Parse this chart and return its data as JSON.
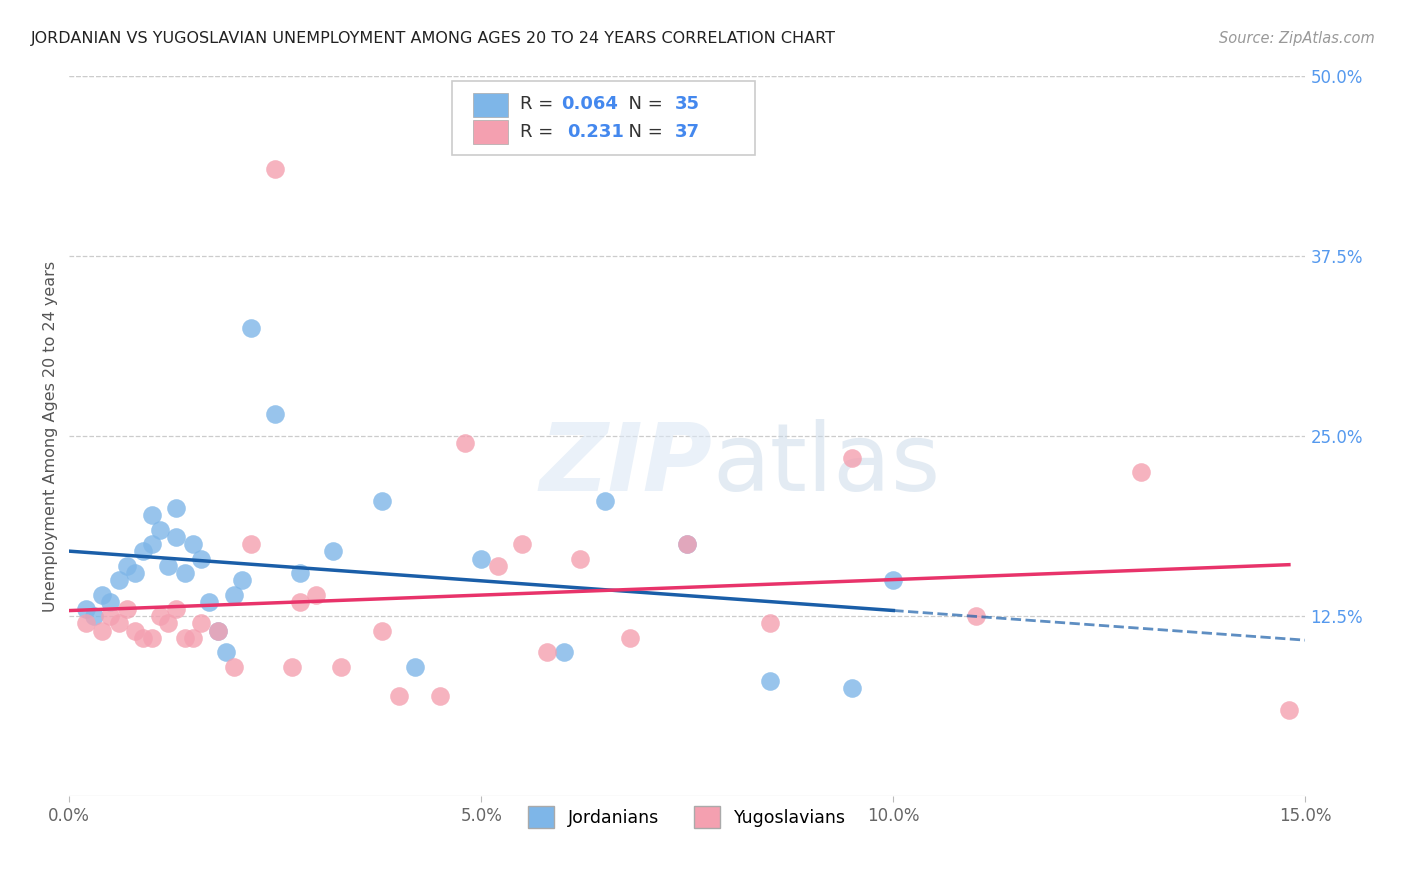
{
  "title": "JORDANIAN VS YUGOSLAVIAN UNEMPLOYMENT AMONG AGES 20 TO 24 YEARS CORRELATION CHART",
  "source": "Source: ZipAtlas.com",
  "ylabel": "Unemployment Among Ages 20 to 24 years",
  "xlim": [
    0.0,
    0.15
  ],
  "ylim": [
    0.0,
    0.5
  ],
  "jordanian_R": 0.064,
  "jordanian_N": 35,
  "yugoslavian_R": 0.231,
  "yugoslavian_N": 37,
  "jordanian_color": "#7EB6E8",
  "yugoslavian_color": "#F4A0B0",
  "jordanian_line_color": "#1A5EA8",
  "yugoslavian_line_color": "#E8336A",
  "background_color": "#FFFFFF",
  "legend_label_1": "Jordanians",
  "legend_label_2": "Yugoslavians",
  "watermark_zip": "ZIP",
  "watermark_atlas": "atlas",
  "jordanian_x": [
    0.002,
    0.003,
    0.004,
    0.005,
    0.006,
    0.007,
    0.008,
    0.009,
    0.01,
    0.01,
    0.011,
    0.012,
    0.013,
    0.013,
    0.014,
    0.015,
    0.016,
    0.017,
    0.018,
    0.019,
    0.02,
    0.021,
    0.022,
    0.025,
    0.028,
    0.032,
    0.038,
    0.042,
    0.05,
    0.06,
    0.065,
    0.075,
    0.085,
    0.095,
    0.1
  ],
  "jordanian_y": [
    0.13,
    0.125,
    0.14,
    0.135,
    0.15,
    0.16,
    0.155,
    0.17,
    0.175,
    0.195,
    0.185,
    0.16,
    0.18,
    0.2,
    0.155,
    0.175,
    0.165,
    0.135,
    0.115,
    0.1,
    0.14,
    0.15,
    0.325,
    0.265,
    0.155,
    0.17,
    0.205,
    0.09,
    0.165,
    0.1,
    0.205,
    0.175,
    0.08,
    0.075,
    0.15
  ],
  "yugoslavian_x": [
    0.002,
    0.004,
    0.005,
    0.006,
    0.007,
    0.008,
    0.009,
    0.01,
    0.011,
    0.012,
    0.013,
    0.014,
    0.015,
    0.016,
    0.018,
    0.02,
    0.022,
    0.025,
    0.027,
    0.028,
    0.03,
    0.033,
    0.038,
    0.04,
    0.045,
    0.048,
    0.052,
    0.055,
    0.058,
    0.062,
    0.068,
    0.075,
    0.085,
    0.095,
    0.11,
    0.13,
    0.148
  ],
  "yugoslavian_y": [
    0.12,
    0.115,
    0.125,
    0.12,
    0.13,
    0.115,
    0.11,
    0.11,
    0.125,
    0.12,
    0.13,
    0.11,
    0.11,
    0.12,
    0.115,
    0.09,
    0.175,
    0.435,
    0.09,
    0.135,
    0.14,
    0.09,
    0.115,
    0.07,
    0.07,
    0.245,
    0.16,
    0.175,
    0.1,
    0.165,
    0.11,
    0.175,
    0.12,
    0.235,
    0.125,
    0.225,
    0.06
  ]
}
